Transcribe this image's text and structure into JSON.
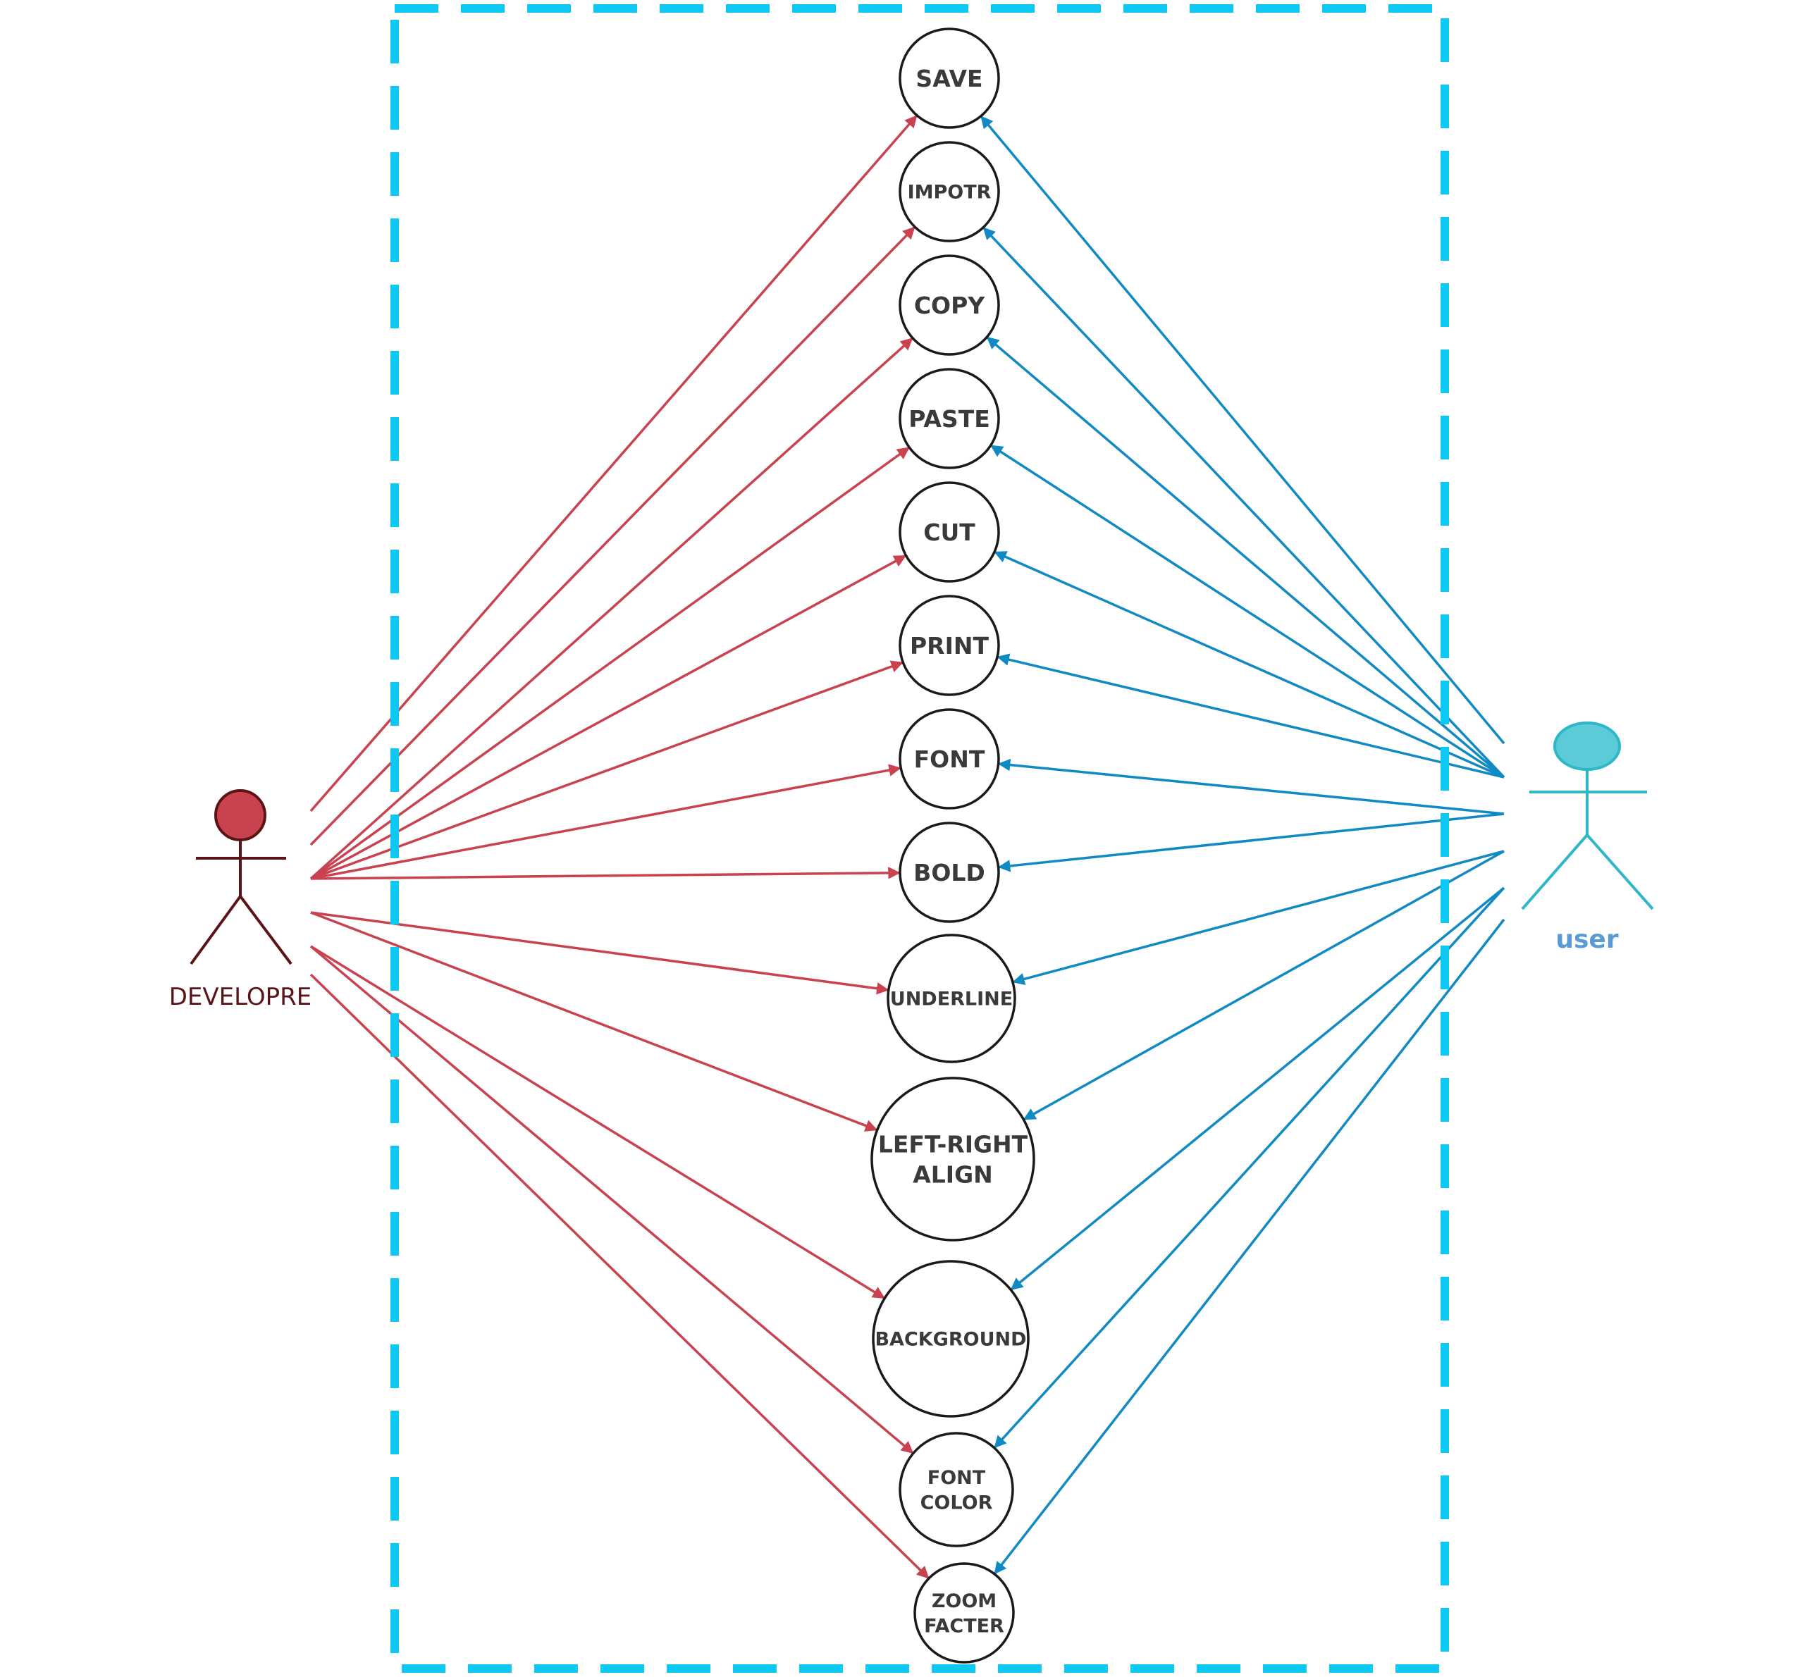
{
  "colors": {
    "developer": "#c9424f",
    "developer_dark": "#5a1418",
    "user_line": "#118ac4",
    "user_figure": "#2eb7c7",
    "user_head": "#5bcbd8",
    "user_label": "#5b9bd5",
    "boundary": "#0dc8f2",
    "circle_stroke": "#1a1a1a"
  },
  "actors": {
    "developer": {
      "label": "DEVELOPRE",
      "icon": "actor-stick-figure"
    },
    "user": {
      "label": "user",
      "icon": "actor-stick-figure"
    }
  },
  "use_cases": [
    {
      "id": "save",
      "lines": [
        "SAVE"
      ]
    },
    {
      "id": "impotr",
      "lines": [
        "IMPOTR"
      ]
    },
    {
      "id": "copy",
      "lines": [
        "COPY"
      ]
    },
    {
      "id": "paste",
      "lines": [
        "PASTE"
      ]
    },
    {
      "id": "cut",
      "lines": [
        "CUT"
      ]
    },
    {
      "id": "print",
      "lines": [
        "PRINT"
      ]
    },
    {
      "id": "font",
      "lines": [
        "FONT"
      ]
    },
    {
      "id": "bold",
      "lines": [
        "BOLD"
      ]
    },
    {
      "id": "underline",
      "lines": [
        "UNDERLINE"
      ]
    },
    {
      "id": "left-right-align",
      "lines": [
        "LEFT-RIGHT",
        "ALIGN"
      ]
    },
    {
      "id": "background",
      "lines": [
        "BACKGROUND"
      ]
    },
    {
      "id": "font-color",
      "lines": [
        "FONT",
        "COLOR"
      ]
    },
    {
      "id": "zoom-facter",
      "lines": [
        "ZOOM",
        "FACTER"
      ]
    }
  ]
}
